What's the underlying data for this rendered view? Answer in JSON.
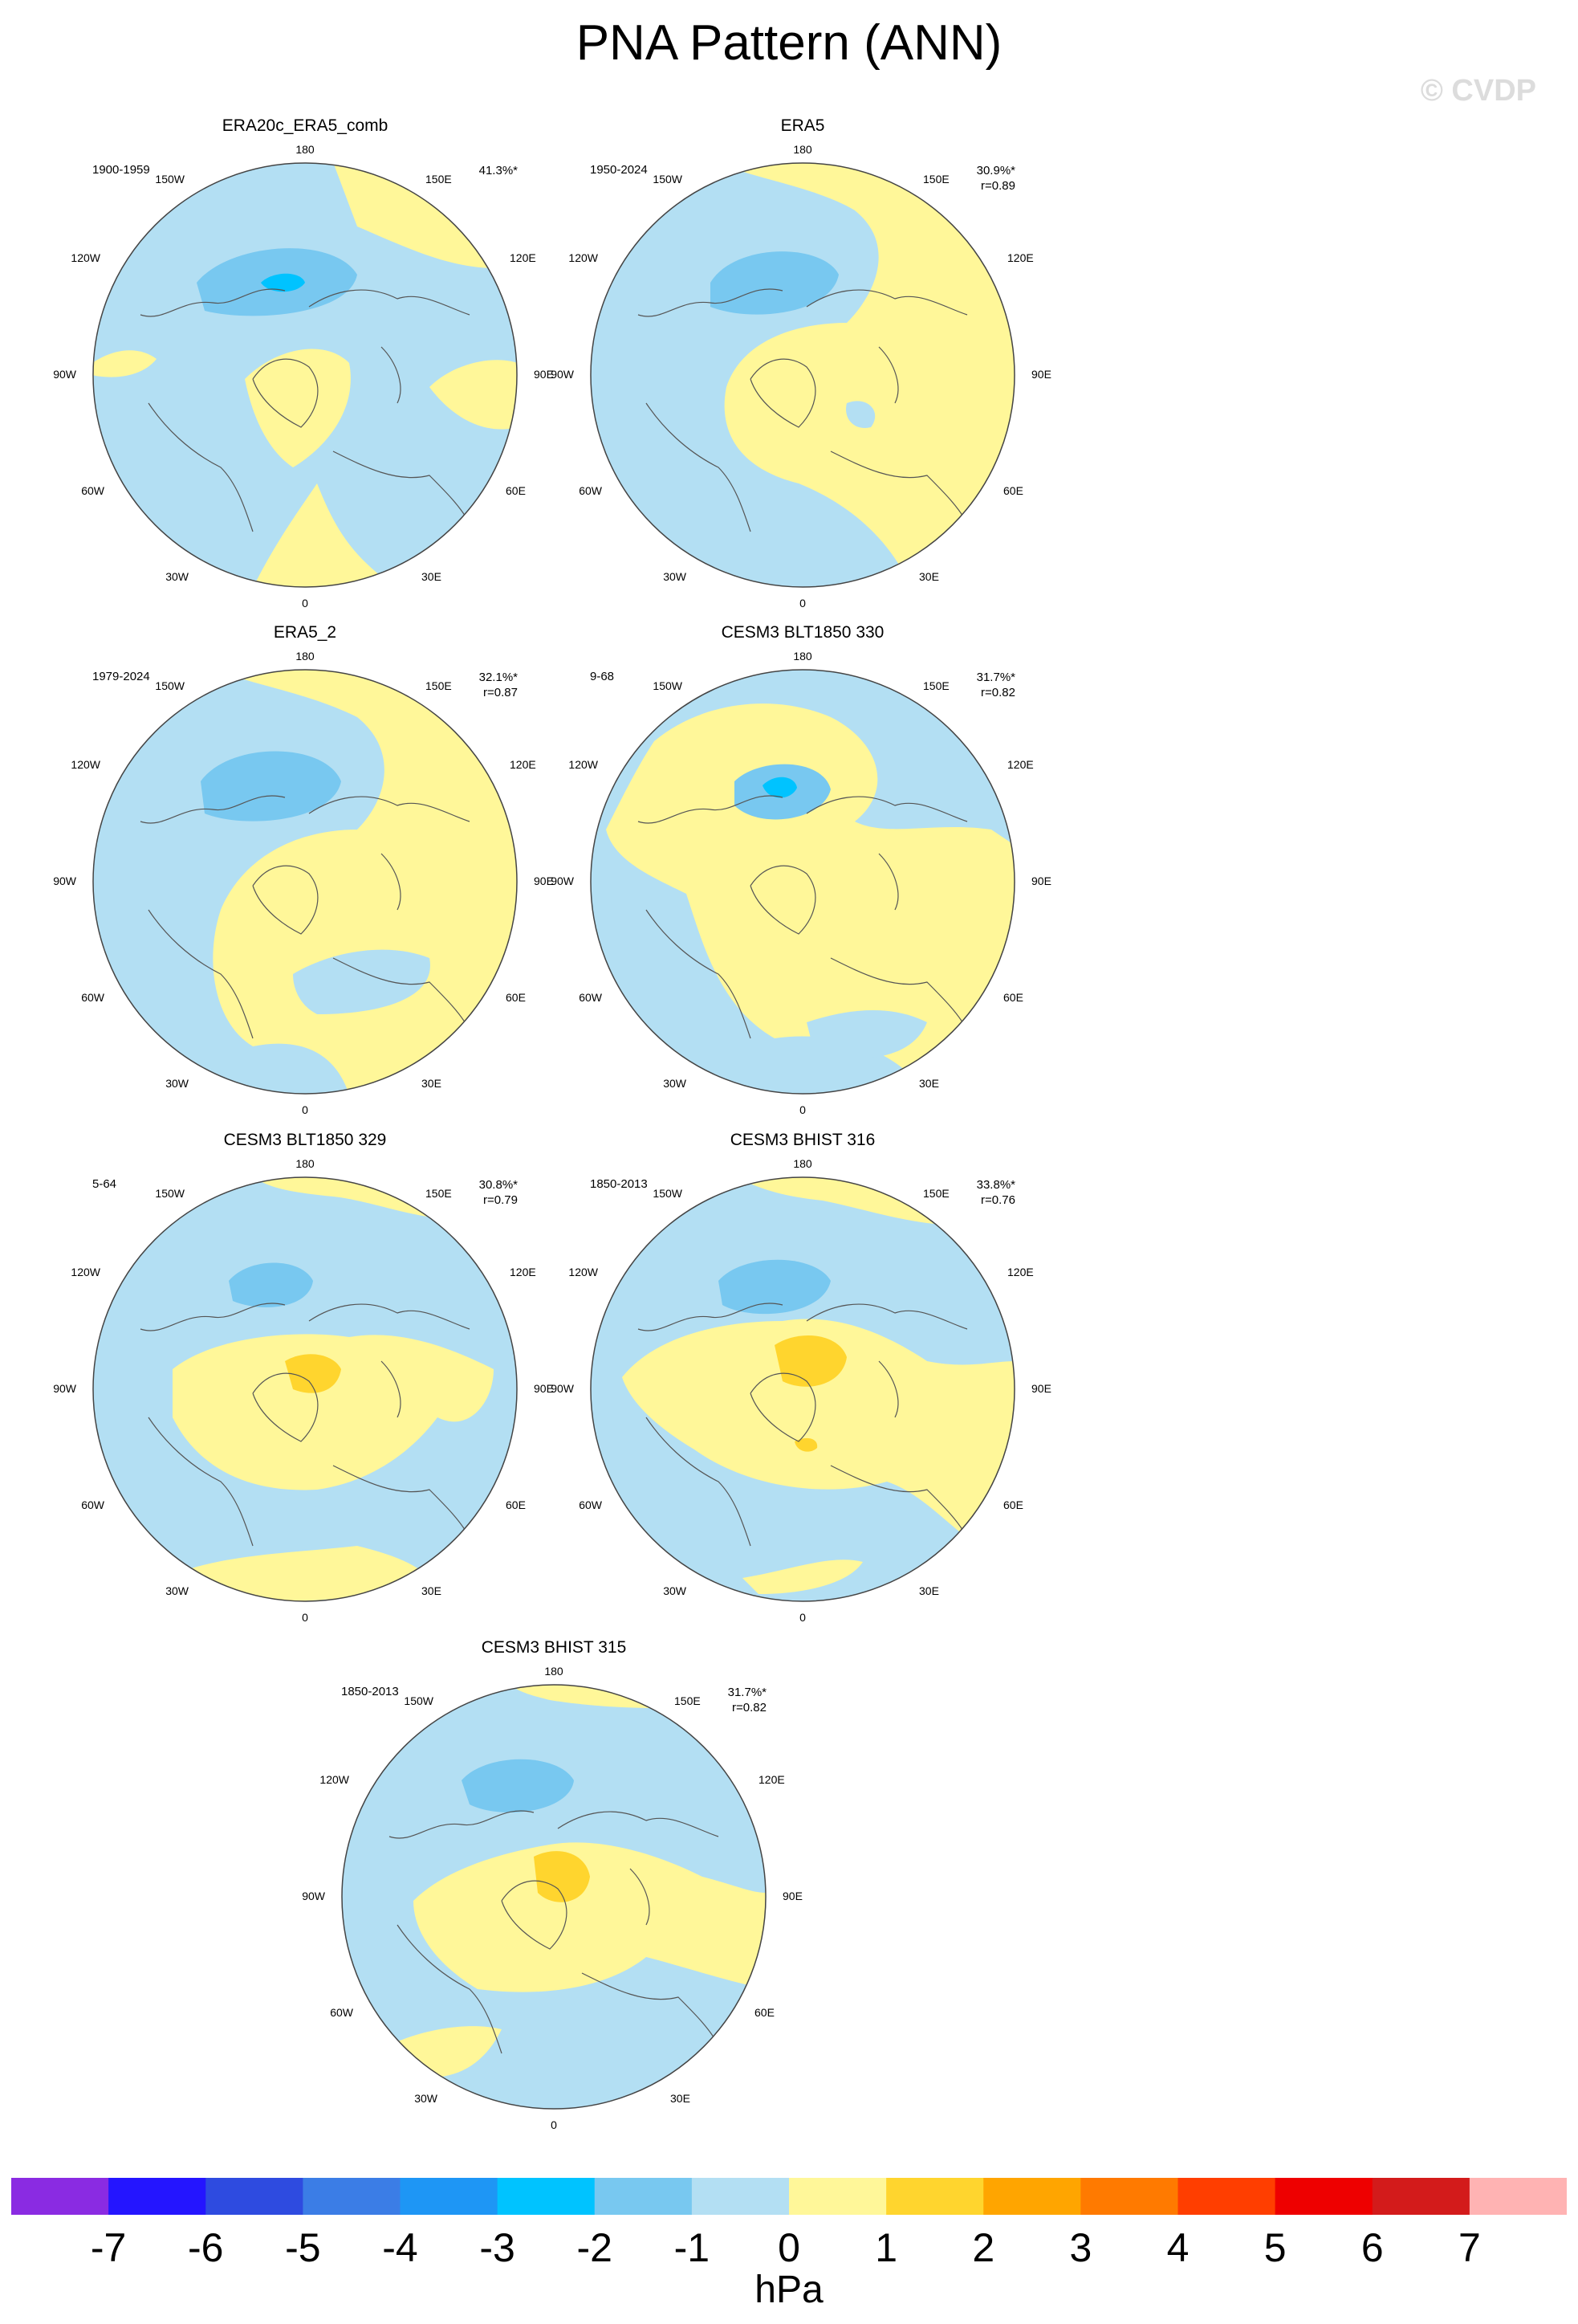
{
  "figure": {
    "title": "PNA Pattern (ANN)",
    "watermark": "© CVDP",
    "units": "hPa"
  },
  "longitude_labels": [
    "180",
    "150E",
    "120E",
    "90E",
    "60E",
    "30E",
    "0",
    "30W",
    "60W",
    "90W",
    "120W",
    "150W"
  ],
  "colorbar": {
    "colors": [
      "#8a2be2",
      "#2415ff",
      "#2e4be0",
      "#3b7de6",
      "#1e96f5",
      "#00c3ff",
      "#78c8f0",
      "#b3dff3",
      "#fff799",
      "#ffd52e",
      "#ffa500",
      "#ff7a00",
      "#ff3e00",
      "#ee0000",
      "#d31b1b",
      "#ffb3b3"
    ],
    "labels": [
      "-7",
      "-6",
      "-5",
      "-4",
      "-3",
      "-2",
      "-1",
      "0",
      "1",
      "2",
      "3",
      "4",
      "5",
      "6",
      "7"
    ]
  },
  "panels": [
    {
      "title": "ERA20c_ERA5_comb",
      "period": "1900-1959",
      "pct": "41.3%*",
      "r": "",
      "shape": 0
    },
    {
      "title": "ERA5",
      "period": "1950-2024",
      "pct": "30.9%*",
      "r": "r=0.89",
      "shape": 1
    },
    {
      "title": "ERA5_2",
      "period": "1979-2024",
      "pct": "32.1%*",
      "r": "r=0.87",
      "shape": 2
    },
    {
      "title": "CESM3 BLT1850 330",
      "period": "9-68",
      "pct": "31.7%*",
      "r": "r=0.82",
      "shape": 3
    },
    {
      "title": "CESM3 BLT1850 329",
      "period": "5-64",
      "pct": "30.8%*",
      "r": "r=0.79",
      "shape": 4
    },
    {
      "title": "CESM3 BHIST 316",
      "period": "1850-2013",
      "pct": "33.8%*",
      "r": "r=0.76",
      "shape": 5
    },
    {
      "title": "CESM3 BHIST 315",
      "period": "1850-2013",
      "pct": "31.7%*",
      "r": "r=0.82",
      "shape": 6
    }
  ]
}
